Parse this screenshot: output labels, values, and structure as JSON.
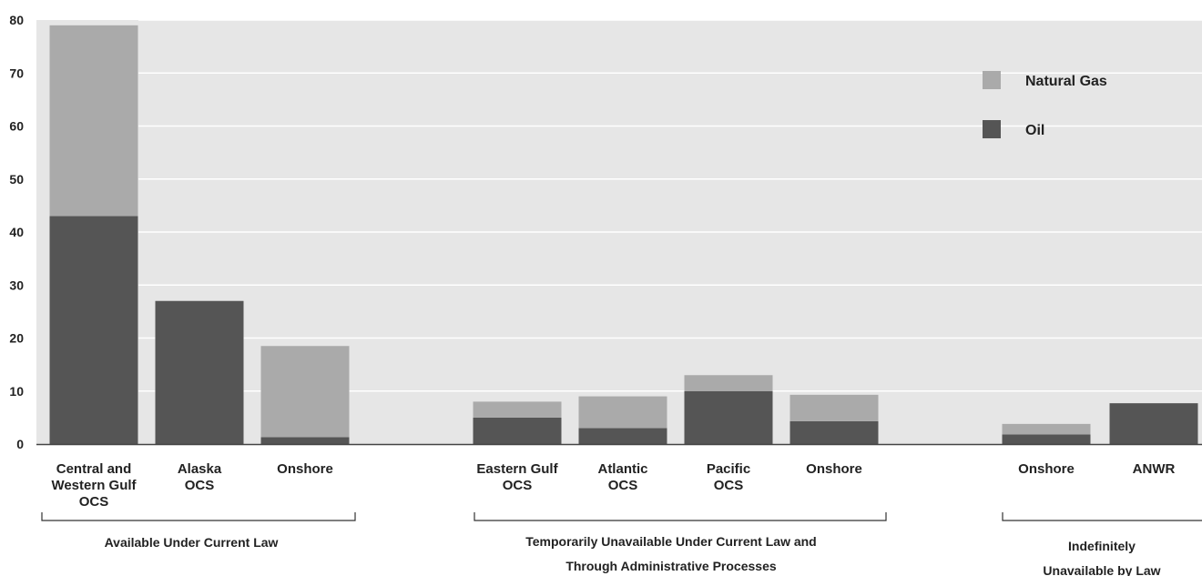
{
  "chart_data": {
    "type": "bar",
    "stacked": true,
    "ylim": [
      0,
      80
    ],
    "yticks": [
      0,
      10,
      20,
      30,
      40,
      50,
      60,
      70,
      80
    ],
    "grid": true,
    "legend_position": "top-right",
    "categories": [
      {
        "label": [
          "Central and",
          "Western Gulf",
          "OCS"
        ],
        "group": 0
      },
      {
        "label": [
          "Alaska",
          "OCS"
        ],
        "group": 0
      },
      {
        "label": [
          "Onshore"
        ],
        "group": 0
      },
      {
        "label": [
          "Eastern Gulf",
          "OCS"
        ],
        "group": 1
      },
      {
        "label": [
          "Atlantic",
          "OCS"
        ],
        "group": 1
      },
      {
        "label": [
          "Pacific",
          "OCS"
        ],
        "group": 1
      },
      {
        "label": [
          "Onshore"
        ],
        "group": 1
      },
      {
        "label": [
          "Onshore"
        ],
        "group": 2
      },
      {
        "label": [
          "ANWR"
        ],
        "group": 2
      }
    ],
    "series": [
      {
        "name": "Oil",
        "color": "#555555",
        "values": [
          43,
          27,
          1.3,
          5,
          3,
          10,
          4.3,
          1.8,
          7.7
        ]
      },
      {
        "name": "Natural Gas",
        "color": "#aaaaaa",
        "values": [
          36,
          0,
          17.2,
          3,
          6,
          3,
          5,
          2,
          0
        ]
      }
    ],
    "legend": [
      "Natural Gas",
      "Oil"
    ],
    "groups": [
      {
        "label": [
          "Available Under Current Law"
        ]
      },
      {
        "label": [
          "Temporarily Unavailable Under Current Law and",
          "Through Administrative Processes"
        ]
      },
      {
        "label": [
          "Indefinitely",
          "Unavailable by Law"
        ]
      }
    ]
  }
}
